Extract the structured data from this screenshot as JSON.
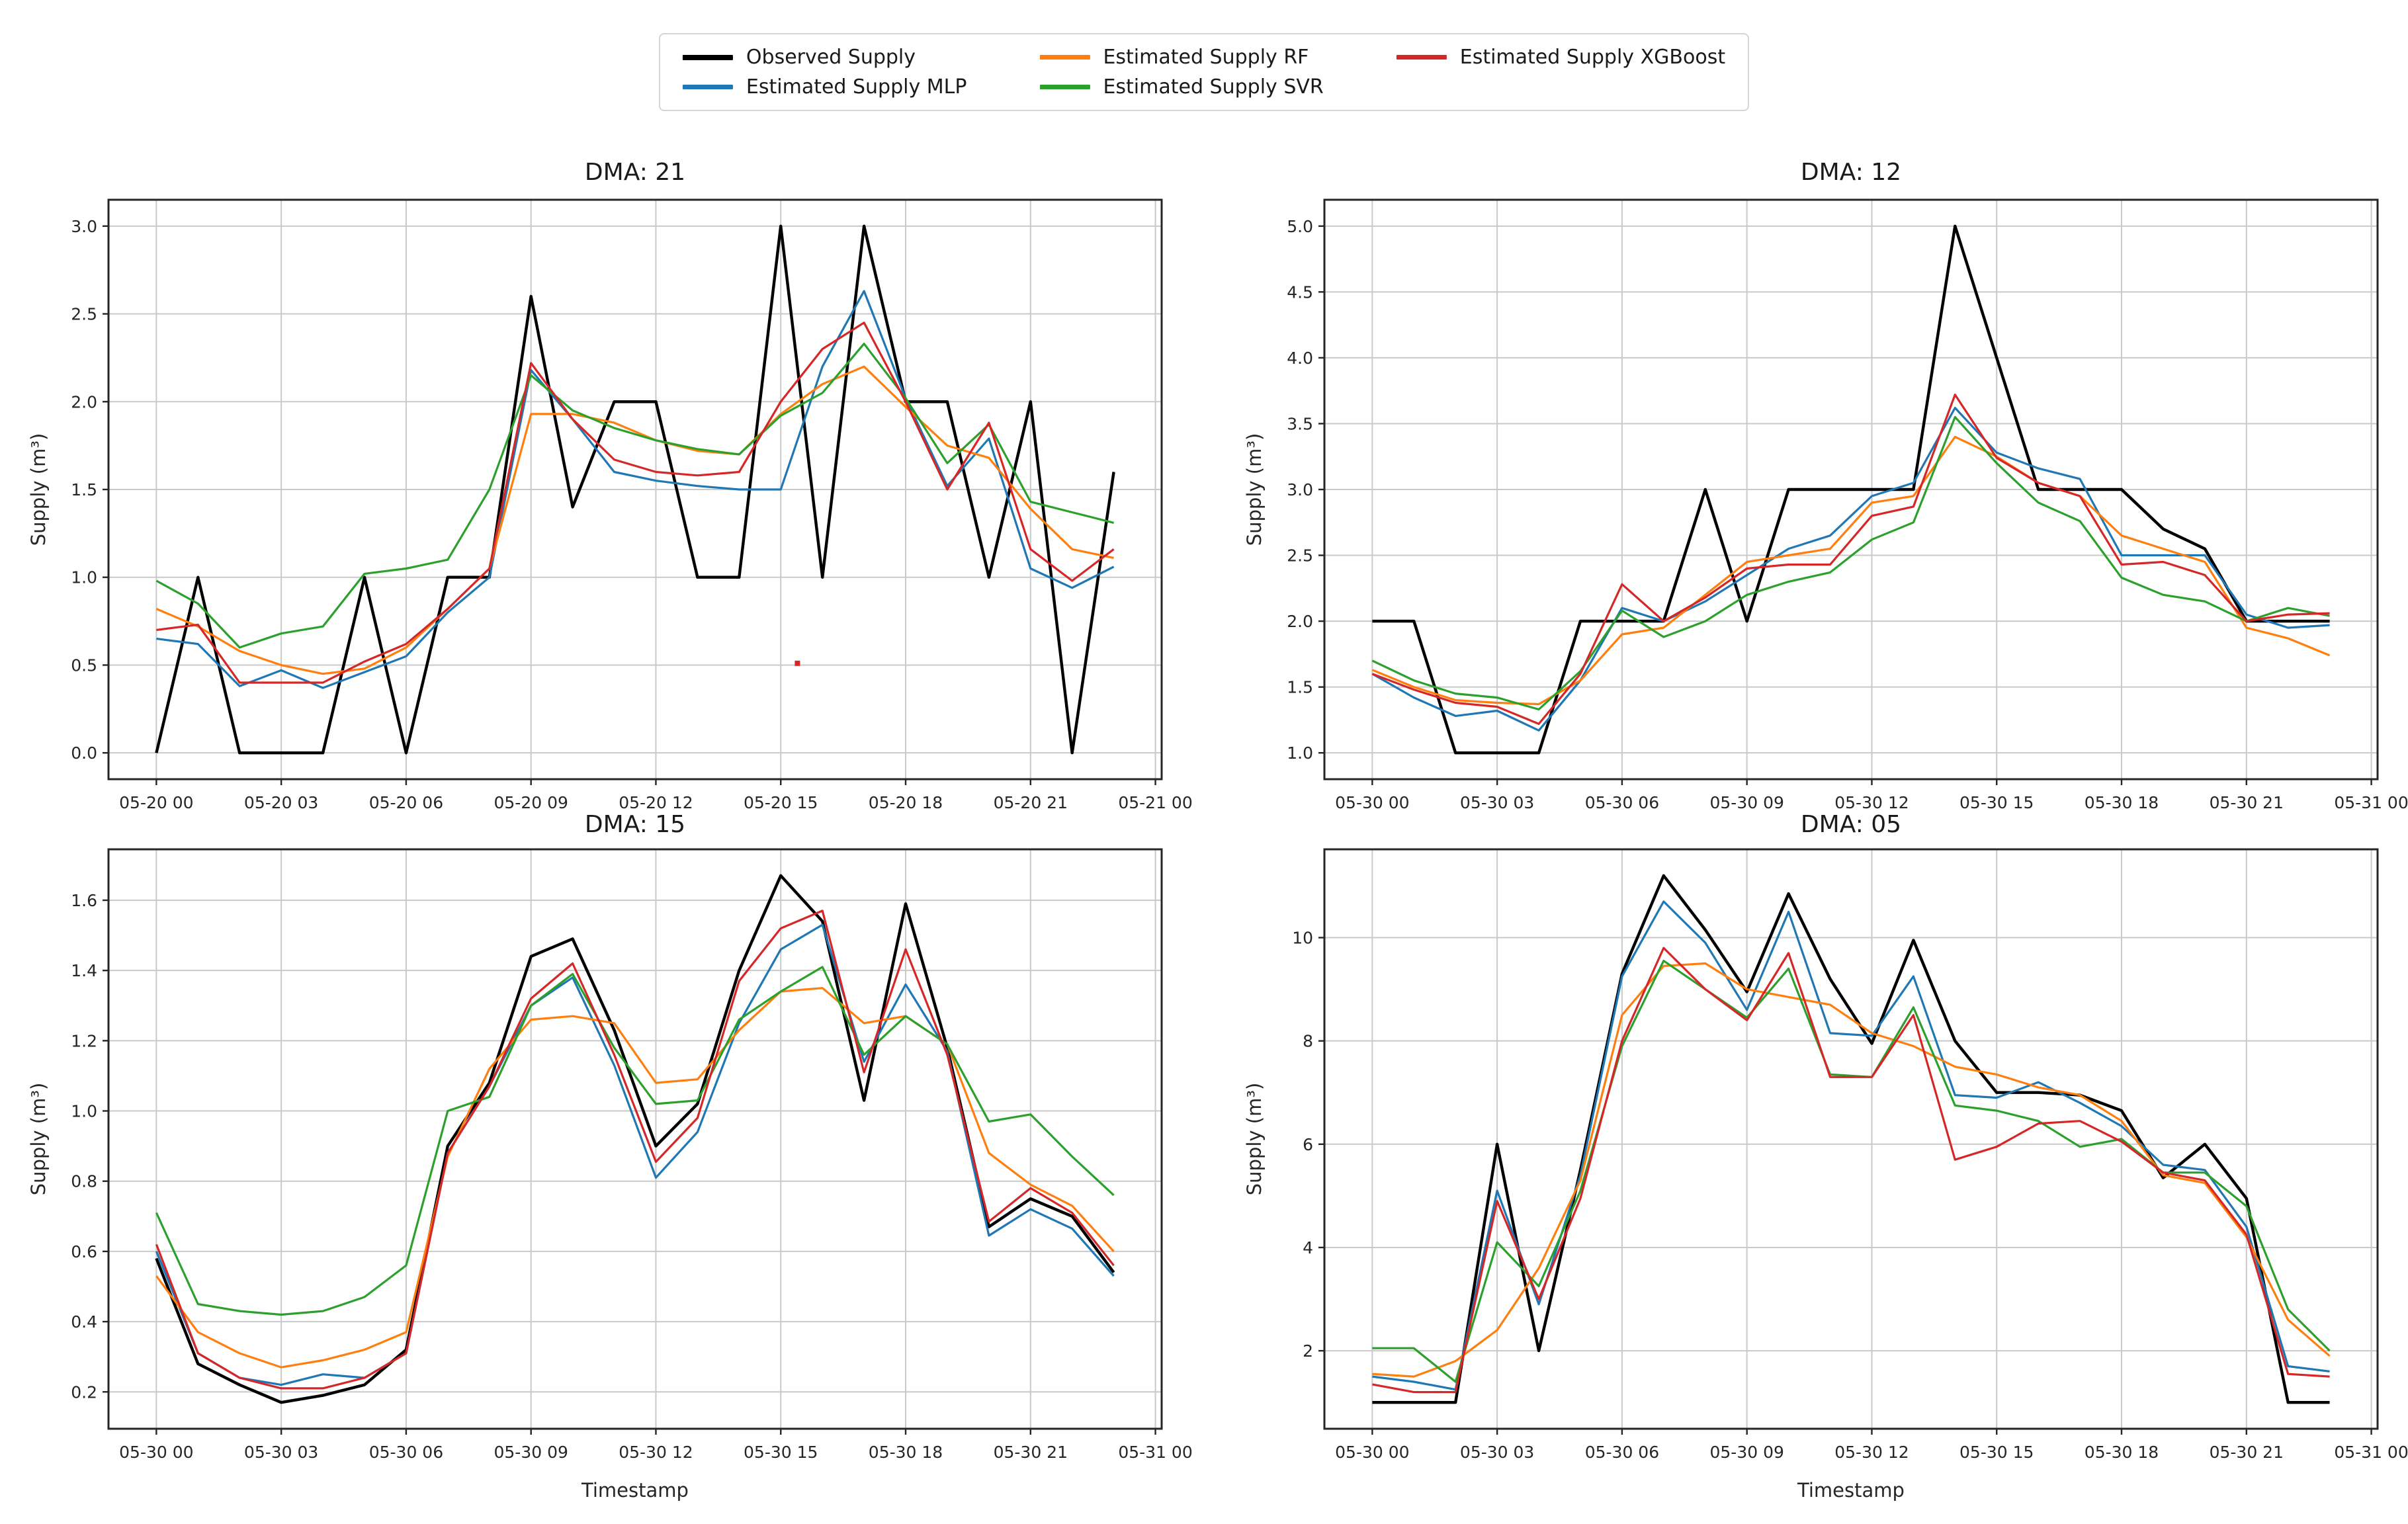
{
  "style": {
    "background": "#ffffff",
    "grid_color": "#c9c9c9",
    "spine_color": "#262626",
    "text_color": "#262626",
    "tick_font_size": 25
  },
  "legend": {
    "items": [
      {
        "key": "observed",
        "label": "Observed Supply",
        "color": "#000000",
        "width": 4.4
      },
      {
        "key": "mlp",
        "label": "Estimated Supply MLP",
        "color": "#1f77b4",
        "width": 3.2
      },
      {
        "key": "rf",
        "label": "Estimated Supply RF",
        "color": "#ff7f0e",
        "width": 3.2
      },
      {
        "key": "svr",
        "label": "Estimated Supply SVR",
        "color": "#2ca02c",
        "width": 3.2
      },
      {
        "key": "xgb",
        "label": "Estimated Supply XGBoost",
        "color": "#d62728",
        "width": 3.2
      }
    ]
  },
  "x_hours": [
    0,
    1,
    2,
    3,
    4,
    5,
    6,
    7,
    8,
    9,
    10,
    11,
    12,
    13,
    14,
    15,
    16,
    17,
    18,
    19,
    20,
    21,
    22,
    23
  ],
  "chart_data": [
    {
      "type": "line",
      "id": "dma21",
      "title": "DMA: 21",
      "ylabel": "Supply (m³)",
      "xlabel": "",
      "xlim": [
        -1.15,
        24.15
      ],
      "ylim": [
        -0.15,
        3.15
      ],
      "grid": true,
      "legend_position": "figure-top-center",
      "xtick_hours": [
        0,
        3,
        6,
        9,
        12,
        15,
        18,
        21,
        24
      ],
      "xtick_labels": [
        "05-20 00",
        "05-20 03",
        "05-20 06",
        "05-20 09",
        "05-20 12",
        "05-20 15",
        "05-20 18",
        "05-20 21",
        "05-21 00"
      ],
      "yticks": [
        "0.0",
        "0.5",
        "1.0",
        "1.5",
        "2.0",
        "2.5",
        "3.0"
      ],
      "series": {
        "observed": [
          0.0,
          1.0,
          0.0,
          0.0,
          0.0,
          1.0,
          0.0,
          1.0,
          1.0,
          2.6,
          1.4,
          2.0,
          2.0,
          1.0,
          1.0,
          3.0,
          1.0,
          3.0,
          2.0,
          2.0,
          1.0,
          2.0,
          0.0,
          1.6
        ],
        "mlp": [
          0.65,
          0.62,
          0.38,
          0.47,
          0.37,
          0.46,
          0.55,
          0.8,
          1.0,
          2.18,
          1.9,
          1.6,
          1.55,
          1.52,
          1.5,
          1.5,
          2.2,
          2.63,
          2.02,
          1.52,
          1.79,
          1.05,
          0.94,
          1.06
        ],
        "rf": [
          0.82,
          0.72,
          0.58,
          0.5,
          0.45,
          0.48,
          0.6,
          0.82,
          1.05,
          1.93,
          1.93,
          1.88,
          1.78,
          1.72,
          1.7,
          1.93,
          2.1,
          2.2,
          1.97,
          1.75,
          1.68,
          1.39,
          1.16,
          1.11
        ],
        "svr": [
          0.98,
          0.85,
          0.6,
          0.68,
          0.72,
          1.02,
          1.05,
          1.1,
          1.5,
          2.15,
          1.95,
          1.85,
          1.78,
          1.73,
          1.7,
          1.92,
          2.05,
          2.33,
          2.02,
          1.65,
          1.87,
          1.43,
          1.37,
          1.31
        ],
        "xgb": [
          0.7,
          0.73,
          0.4,
          0.4,
          0.4,
          0.52,
          0.62,
          0.82,
          1.05,
          2.22,
          1.9,
          1.67,
          1.6,
          1.58,
          1.6,
          2.0,
          2.3,
          2.45,
          2.0,
          1.5,
          1.88,
          1.16,
          0.98,
          1.16
        ]
      },
      "outliers": [
        {
          "x": 15.4,
          "y": 0.51,
          "color": "#d62728"
        }
      ]
    },
    {
      "type": "line",
      "id": "dma12",
      "title": "DMA: 12",
      "ylabel": "Supply (m³)",
      "xlabel": "",
      "xlim": [
        -1.15,
        24.15
      ],
      "ylim": [
        0.8,
        5.2
      ],
      "grid": true,
      "xtick_hours": [
        0,
        3,
        6,
        9,
        12,
        15,
        18,
        21,
        24
      ],
      "xtick_labels": [
        "05-30 00",
        "05-30 03",
        "05-30 06",
        "05-30 09",
        "05-30 12",
        "05-30 15",
        "05-30 18",
        "05-30 21",
        "05-31 00"
      ],
      "yticks": [
        "1.0",
        "1.5",
        "2.0",
        "2.5",
        "3.0",
        "3.5",
        "4.0",
        "4.5",
        "5.0"
      ],
      "series": {
        "observed": [
          2.0,
          2.0,
          1.0,
          1.0,
          1.0,
          2.0,
          2.0,
          2.0,
          3.0,
          2.0,
          3.0,
          3.0,
          3.0,
          3.0,
          5.0,
          4.0,
          3.0,
          3.0,
          3.0,
          2.7,
          2.55,
          2.0,
          2.0,
          2.0
        ],
        "mlp": [
          1.6,
          1.42,
          1.28,
          1.32,
          1.17,
          1.55,
          2.1,
          2.0,
          2.15,
          2.35,
          2.55,
          2.65,
          2.95,
          3.05,
          3.62,
          3.28,
          3.16,
          3.08,
          2.5,
          2.5,
          2.5,
          2.05,
          1.95,
          1.97
        ],
        "rf": [
          1.63,
          1.5,
          1.4,
          1.38,
          1.37,
          1.55,
          1.9,
          1.95,
          2.2,
          2.45,
          2.5,
          2.55,
          2.9,
          2.95,
          3.4,
          3.25,
          3.05,
          2.95,
          2.65,
          2.55,
          2.45,
          1.95,
          1.87,
          1.74
        ],
        "svr": [
          1.7,
          1.55,
          1.45,
          1.42,
          1.33,
          1.62,
          2.08,
          1.88,
          2.0,
          2.2,
          2.3,
          2.37,
          2.62,
          2.75,
          3.55,
          3.2,
          2.9,
          2.76,
          2.33,
          2.2,
          2.15,
          2.0,
          2.1,
          2.04
        ],
        "xgb": [
          1.6,
          1.48,
          1.38,
          1.35,
          1.22,
          1.6,
          2.28,
          2.0,
          2.18,
          2.4,
          2.43,
          2.43,
          2.8,
          2.87,
          3.72,
          3.24,
          3.05,
          2.95,
          2.43,
          2.45,
          2.35,
          2.0,
          2.05,
          2.06
        ]
      },
      "outliers": []
    },
    {
      "type": "line",
      "id": "dma15",
      "title": "DMA: 15",
      "ylabel": "Supply (m³)",
      "xlabel": "Timestamp",
      "xlim": [
        -1.15,
        24.15
      ],
      "ylim": [
        0.095,
        1.745
      ],
      "grid": true,
      "xtick_hours": [
        0,
        3,
        6,
        9,
        12,
        15,
        18,
        21,
        24
      ],
      "xtick_labels": [
        "05-30 00",
        "05-30 03",
        "05-30 06",
        "05-30 09",
        "05-30 12",
        "05-30 15",
        "05-30 18",
        "05-30 21",
        "05-31 00"
      ],
      "yticks": [
        "0.2",
        "0.4",
        "0.6",
        "0.8",
        "1.0",
        "1.2",
        "1.4",
        "1.6"
      ],
      "series": {
        "observed": [
          0.58,
          0.28,
          0.22,
          0.17,
          0.19,
          0.22,
          0.32,
          0.9,
          1.08,
          1.44,
          1.49,
          1.23,
          0.9,
          1.02,
          1.4,
          1.67,
          1.54,
          1.03,
          1.59,
          1.18,
          0.67,
          0.75,
          0.7,
          0.54
        ],
        "mlp": [
          0.6,
          0.31,
          0.24,
          0.22,
          0.25,
          0.24,
          0.31,
          0.88,
          1.07,
          1.3,
          1.38,
          1.13,
          0.81,
          0.94,
          1.25,
          1.46,
          1.53,
          1.14,
          1.36,
          1.17,
          0.645,
          0.72,
          0.665,
          0.53
        ],
        "rf": [
          0.53,
          0.37,
          0.31,
          0.27,
          0.29,
          0.32,
          0.37,
          0.87,
          1.12,
          1.26,
          1.27,
          1.25,
          1.08,
          1.09,
          1.23,
          1.34,
          1.35,
          1.25,
          1.27,
          1.19,
          0.88,
          0.79,
          0.73,
          0.6
        ],
        "svr": [
          0.71,
          0.45,
          0.43,
          0.42,
          0.43,
          0.47,
          0.56,
          1.0,
          1.04,
          1.3,
          1.39,
          1.18,
          1.02,
          1.03,
          1.26,
          1.34,
          1.41,
          1.16,
          1.27,
          1.19,
          0.97,
          0.99,
          0.87,
          0.76
        ],
        "xgb": [
          0.62,
          0.31,
          0.24,
          0.21,
          0.21,
          0.24,
          0.31,
          0.88,
          1.07,
          1.32,
          1.42,
          1.16,
          0.855,
          0.98,
          1.37,
          1.52,
          1.57,
          1.11,
          1.46,
          1.16,
          0.685,
          0.78,
          0.71,
          0.56
        ]
      },
      "outliers": []
    },
    {
      "type": "line",
      "id": "dma05",
      "title": "DMA: 05",
      "ylabel": "Supply (m³)",
      "xlabel": "Timestamp",
      "xlim": [
        -1.15,
        24.15
      ],
      "ylim": [
        0.49,
        11.71
      ],
      "grid": true,
      "xtick_hours": [
        0,
        3,
        6,
        9,
        12,
        15,
        18,
        21,
        24
      ],
      "xtick_labels": [
        "05-30 00",
        "05-30 03",
        "05-30 06",
        "05-30 09",
        "05-30 12",
        "05-30 15",
        "05-30 18",
        "05-30 21",
        "05-31 00"
      ],
      "yticks": [
        "2",
        "4",
        "6",
        "8",
        "10"
      ],
      "series": {
        "observed": [
          1.0,
          1.0,
          1.0,
          6.0,
          2.0,
          5.5,
          9.3,
          11.2,
          10.15,
          8.95,
          10.85,
          9.2,
          7.95,
          9.95,
          8.0,
          7.0,
          7.0,
          6.95,
          6.65,
          5.35,
          6.0,
          4.95,
          1.0,
          1.0
        ],
        "mlp": [
          1.5,
          1.4,
          1.25,
          5.1,
          2.9,
          5.4,
          9.25,
          10.7,
          9.9,
          8.6,
          10.5,
          8.15,
          8.1,
          9.25,
          6.95,
          6.9,
          7.2,
          6.8,
          6.35,
          5.6,
          5.5,
          4.4,
          1.7,
          1.6
        ],
        "rf": [
          1.55,
          1.5,
          1.8,
          2.4,
          3.6,
          5.3,
          8.5,
          9.45,
          9.5,
          9.0,
          8.85,
          8.7,
          8.15,
          7.9,
          7.5,
          7.35,
          7.1,
          6.95,
          6.45,
          5.4,
          5.25,
          4.2,
          2.6,
          1.9
        ],
        "svr": [
          2.05,
          2.05,
          1.4,
          4.1,
          3.25,
          5.1,
          7.9,
          9.55,
          9.0,
          8.45,
          9.4,
          7.35,
          7.3,
          8.65,
          6.75,
          6.65,
          6.45,
          5.95,
          6.1,
          5.45,
          5.45,
          4.8,
          2.8,
          2.0
        ],
        "xgb": [
          1.35,
          1.2,
          1.2,
          4.9,
          3.0,
          4.95,
          8.0,
          9.8,
          9.0,
          8.4,
          9.7,
          7.3,
          7.3,
          8.5,
          5.7,
          5.95,
          6.4,
          6.45,
          6.05,
          5.45,
          5.3,
          4.25,
          1.55,
          1.5
        ]
      },
      "outliers": []
    }
  ]
}
